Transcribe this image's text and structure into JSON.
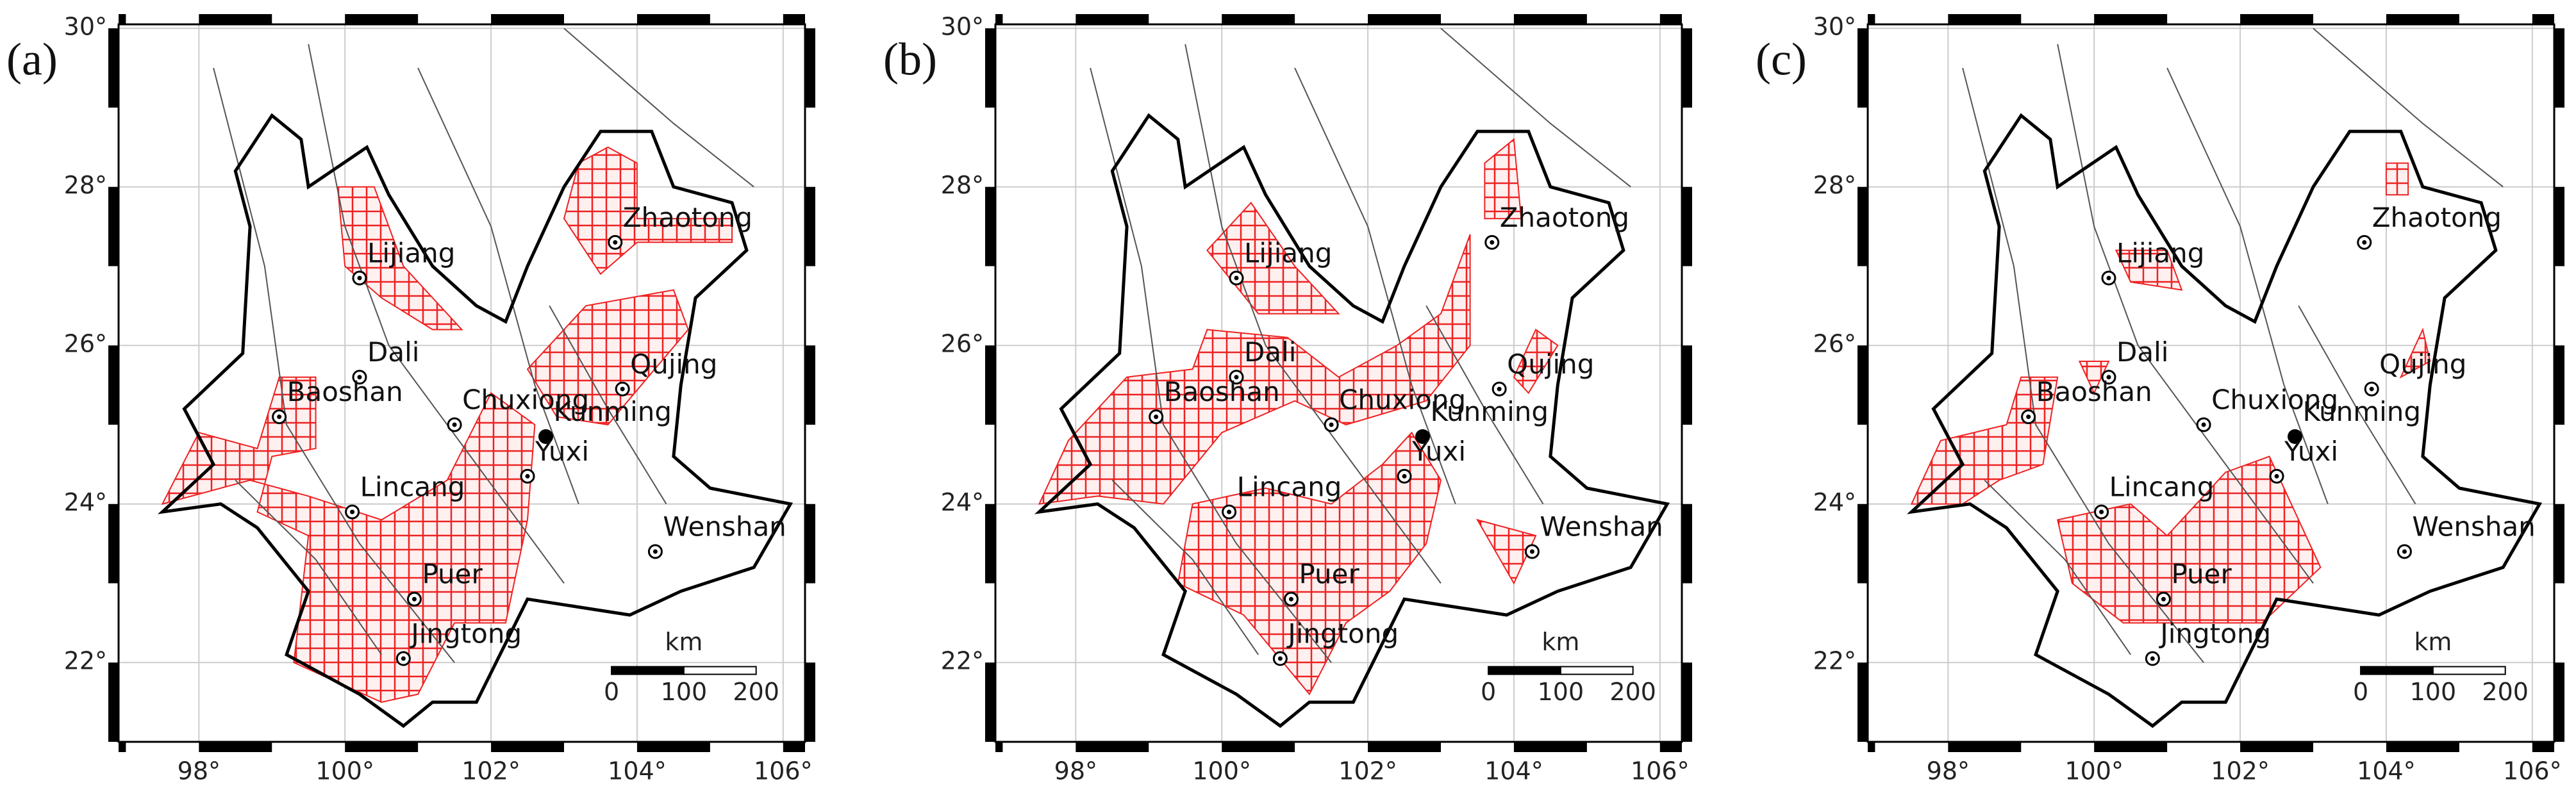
{
  "panels": [
    {
      "label": "(a)"
    },
    {
      "label": "(b)"
    },
    {
      "label": "(c)"
    }
  ],
  "map": {
    "xlim": [
      96.9,
      106.3
    ],
    "ylim": [
      21.0,
      30.05
    ],
    "xticks": [
      {
        "value": 98,
        "label": "98°"
      },
      {
        "value": 100,
        "label": "100°"
      },
      {
        "value": 102,
        "label": "102°"
      },
      {
        "value": 104,
        "label": "104°"
      },
      {
        "value": 106,
        "label": "106°"
      }
    ],
    "yticks": [
      {
        "value": 22,
        "label": "22°"
      },
      {
        "value": 24,
        "label": "24°"
      },
      {
        "value": 26,
        "label": "26°"
      },
      {
        "value": 28,
        "label": "28°"
      },
      {
        "value": 30,
        "label": "30°"
      }
    ],
    "cities": [
      {
        "name": "Lijiang",
        "lon": 100.2,
        "lat": 26.85
      },
      {
        "name": "Zhaotong",
        "lon": 103.7,
        "lat": 27.3
      },
      {
        "name": "Dali",
        "lon": 100.2,
        "lat": 25.6
      },
      {
        "name": "Chuxiong",
        "lon": 101.5,
        "lat": 25.0
      },
      {
        "name": "Qujing",
        "lon": 103.8,
        "lat": 25.45
      },
      {
        "name": "Baoshan",
        "lon": 99.1,
        "lat": 25.1
      },
      {
        "name": "Kunming",
        "lon": 102.75,
        "lat": 24.85
      },
      {
        "name": "Yuxi",
        "lon": 102.5,
        "lat": 24.35
      },
      {
        "name": "Lincang",
        "lon": 100.1,
        "lat": 23.9
      },
      {
        "name": "Wenshan",
        "lon": 104.25,
        "lat": 23.4
      },
      {
        "name": "Puer",
        "lon": 100.95,
        "lat": 22.8
      },
      {
        "name": "Jingtong",
        "lon": 100.8,
        "lat": 22.05
      }
    ],
    "scale_bar": {
      "unit": "km",
      "ticks": [
        0,
        100,
        200
      ]
    }
  }
}
